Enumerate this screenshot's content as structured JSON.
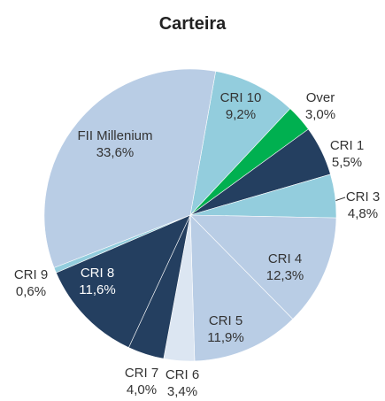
{
  "chart_data": {
    "type": "pie",
    "title": "Carteira",
    "categories": [
      "CRI 10",
      "Over",
      "CRI 1",
      "CRI 3",
      "CRI 4",
      "CRI 5",
      "CRI 6",
      "CRI 7",
      "CRI 8",
      "CRI 9",
      "FII Millenium"
    ],
    "values": [
      9.2,
      3.0,
      5.5,
      4.8,
      12.3,
      11.9,
      3.4,
      4.0,
      11.6,
      0.6,
      33.6
    ],
    "value_labels": [
      "9,2%",
      "3,0%",
      "5,5%",
      "4,8%",
      "12,3%",
      "11,9%",
      "3,4%",
      "4,0%",
      "11,6%",
      "0,6%",
      "33,6%"
    ],
    "colors": [
      "#93cddd",
      "#00b050",
      "#243f60",
      "#93cddd",
      "#b9cde5",
      "#b9cde5",
      "#dce6f2",
      "#243f60",
      "#243f60",
      "#93cddd",
      "#b9cde5"
    ]
  }
}
